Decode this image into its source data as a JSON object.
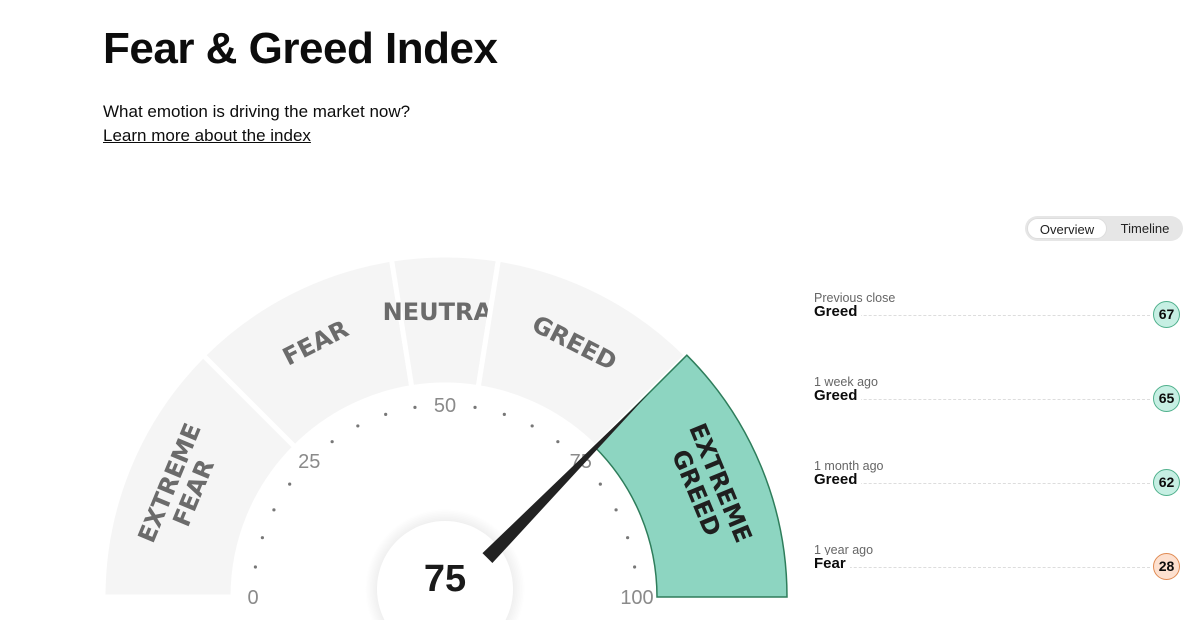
{
  "header": {
    "title": "Fear & Greed Index",
    "subtitle": "What emotion is driving the market now?",
    "learn_link": "Learn more about the index"
  },
  "toggle": {
    "options": [
      "Overview",
      "Timeline"
    ],
    "selected": "Overview"
  },
  "gauge": {
    "value": 75,
    "value_label": "75",
    "segments": [
      {
        "label": "EXTREME FEAR",
        "lines": [
          "EXTREME",
          "FEAR"
        ],
        "from": 0,
        "to": 25
      },
      {
        "label": "FEAR",
        "lines": [
          "FEAR"
        ],
        "from": 25,
        "to": 45
      },
      {
        "label": "NEUTRAL",
        "lines": [
          "NEUTRAL"
        ],
        "from": 45,
        "to": 55
      },
      {
        "label": "GREED",
        "lines": [
          "GREED"
        ],
        "from": 55,
        "to": 75
      },
      {
        "label": "EXTREME GREED",
        "lines": [
          "EXTREME",
          "GREED"
        ],
        "from": 75,
        "to": 100
      }
    ],
    "active_segment": "EXTREME GREED",
    "tick_labels": [
      "0",
      "25",
      "50",
      "75",
      "100"
    ],
    "colors": {
      "inactive": "#f5f5f5",
      "active": "#8dd5c1",
      "active_border": "#2e7d5b",
      "text": "#6b6b6b",
      "needle": "#222222"
    }
  },
  "history": [
    {
      "label": "Previous close",
      "rating": "Greed",
      "value": "67",
      "color": "greed"
    },
    {
      "label": "1 week ago",
      "rating": "Greed",
      "value": "65",
      "color": "greed"
    },
    {
      "label": "1 month ago",
      "rating": "Greed",
      "value": "62",
      "color": "greed"
    },
    {
      "label": "1 year ago",
      "rating": "Fear",
      "value": "28",
      "color": "fear"
    }
  ],
  "badge_colors": {
    "greed": {
      "bg": "#c6efe3",
      "border": "#4fb08c"
    },
    "fear": {
      "bg": "#fde0cf",
      "border": "#e08a52"
    }
  }
}
